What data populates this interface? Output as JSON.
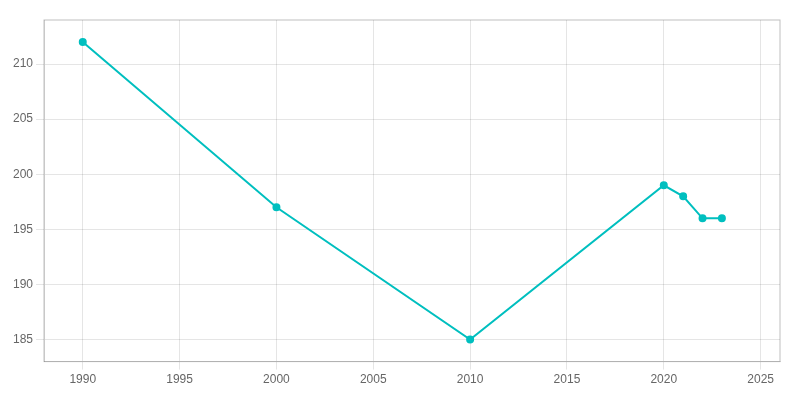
{
  "chart_data": {
    "type": "line",
    "x": [
      1990,
      2000,
      2010,
      2020,
      2021,
      2022,
      2023
    ],
    "values": [
      212,
      197,
      185,
      199,
      198,
      196,
      196
    ],
    "color": "#00BFBF",
    "marker": "o",
    "xlim": [
      1988,
      2026
    ],
    "xticks": [
      1990,
      1995,
      2000,
      2005,
      2010,
      2015,
      2020,
      2025
    ],
    "ylim": [
      183,
      214
    ],
    "yticks": [
      185,
      190,
      195,
      200,
      205,
      210
    ],
    "grid": true
  }
}
